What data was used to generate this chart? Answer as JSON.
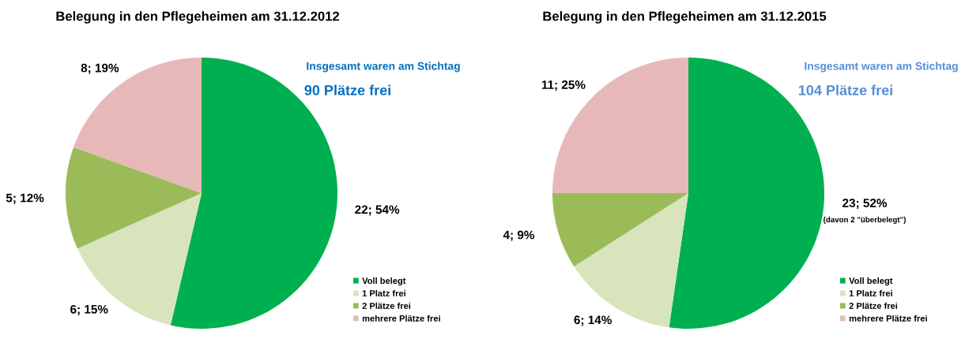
{
  "chart_data": [
    {
      "type": "pie",
      "title": "Belegung in den Pflegeheimen am 31.12.2012",
      "categories": [
        "Voll belegt",
        "1 Platz frei",
        "2 Plätze frei",
        "mehrere Plätze frei"
      ],
      "values": [
        22,
        6,
        5,
        8
      ],
      "colors": [
        "#00b050",
        "#d8e4bc",
        "#9bbb59",
        "#e6b9b8"
      ],
      "value_labels": [
        "22; 54%",
        "6; 15%",
        "5; 12%",
        "8; 19%"
      ],
      "annotations": [
        "Insgesamt waren am Stichtag",
        "90 Plätze frei"
      ],
      "legend": "bottom right"
    },
    {
      "type": "pie",
      "title": "Belegung in den Pflegeheimen am 31.12.2015",
      "categories": [
        "Voll belegt",
        "1 Platz frei",
        "2 Plätze frei",
        "mehrere Plätze frei"
      ],
      "values": [
        23,
        6,
        4,
        11
      ],
      "colors": [
        "#00b050",
        "#d8e4bc",
        "#9bbb59",
        "#e6b9b8"
      ],
      "value_labels": [
        "23; 52%",
        "6; 14%",
        "4; 9%",
        "11; 25%"
      ],
      "annotations": [
        "Insgesamt waren am Stichtag",
        "104 Plätze frei",
        "(davon 2 \"überbelegt\")"
      ],
      "legend": "bottom right"
    }
  ]
}
